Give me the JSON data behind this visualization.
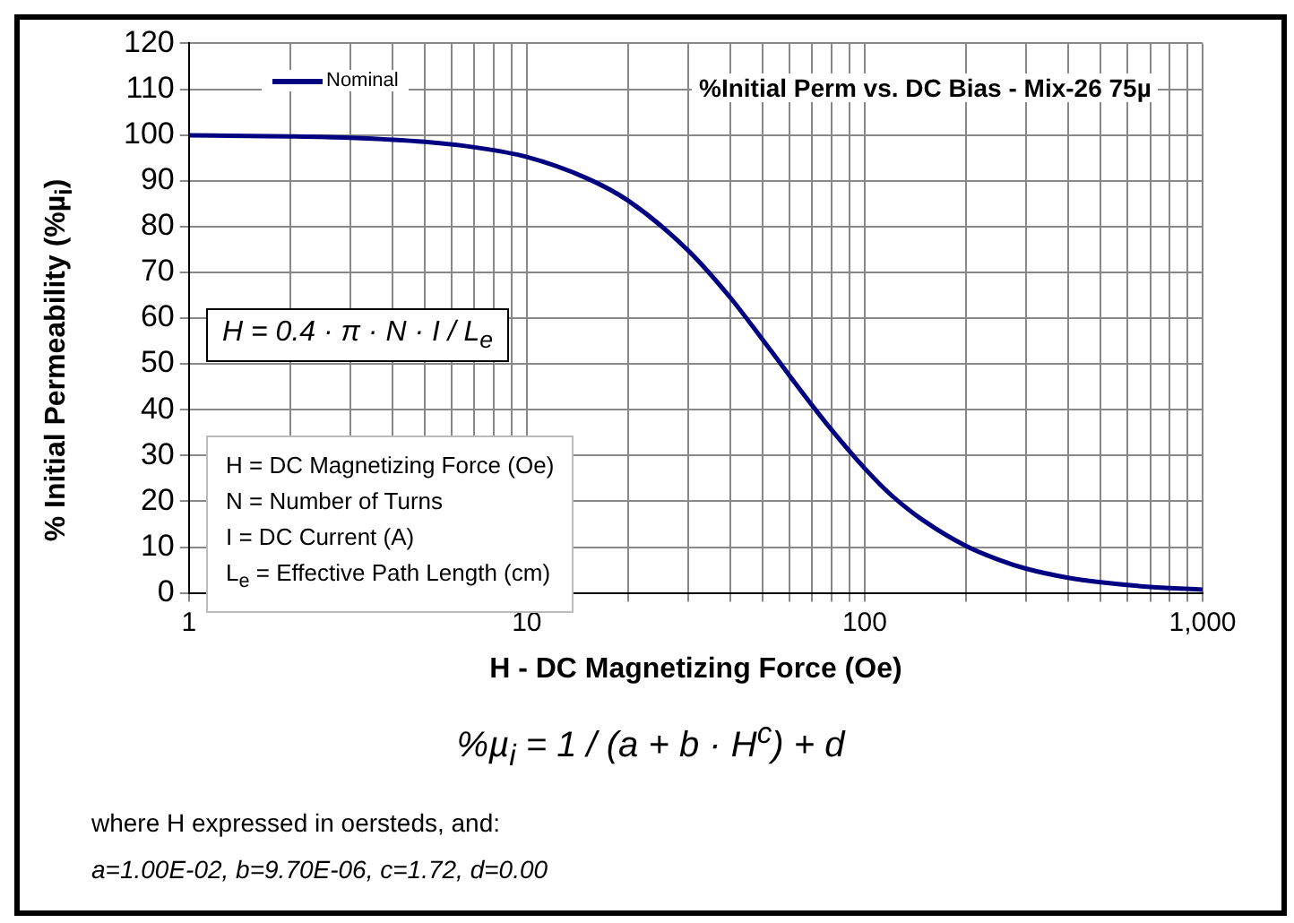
{
  "chart_data": {
    "type": "line",
    "title": "%Initial Perm vs. DC Bias - Mix-26  75µ",
    "xlabel": "H - DC Magnetizing Force (Oe)",
    "ylabel": "% Initial Permeability (%µ$_{i}$)",
    "x": [
      1,
      2,
      3,
      5,
      7,
      10,
      15,
      20,
      30,
      40,
      50,
      60,
      70,
      80,
      100,
      120,
      150,
      200,
      250,
      300,
      400,
      500,
      700,
      1000
    ],
    "series": [
      {
        "name": "Nominal",
        "color": "#000080",
        "values": [
          99.9,
          99.7,
          99.4,
          98.5,
          97.3,
          95.2,
          90.6,
          85.6,
          74.8,
          64.5,
          55.2,
          47.4,
          40.9,
          35.5,
          27.2,
          21.3,
          15.7,
          10.2,
          7.2,
          5.3,
          3.3,
          2.3,
          1.3,
          0.7
        ]
      }
    ],
    "log": "x",
    "xlim": [
      1,
      1000
    ],
    "xticks": [
      1,
      {
        "value": 2,
        "label": null
      },
      {
        "value": 3,
        "label": null
      },
      {
        "value": 4,
        "label": null
      },
      {
        "value": 5,
        "label": null
      },
      {
        "value": 6,
        "label": null
      },
      {
        "value": 7,
        "label": null
      },
      {
        "value": 8,
        "label": null
      },
      {
        "value": 9,
        "label": null
      },
      10,
      {
        "value": 20,
        "label": null
      },
      {
        "value": 30,
        "label": null
      },
      {
        "value": 40,
        "label": null
      },
      {
        "value": 50,
        "label": null
      },
      {
        "value": 60,
        "label": null
      },
      {
        "value": 70,
        "label": null
      },
      {
        "value": 80,
        "label": null
      },
      {
        "value": 90,
        "label": null
      },
      100,
      {
        "value": 200,
        "label": null
      },
      {
        "value": 300,
        "label": null
      },
      {
        "value": 400,
        "label": null
      },
      {
        "value": 500,
        "label": null
      },
      {
        "value": 600,
        "label": null
      },
      {
        "value": 700,
        "label": null
      },
      {
        "value": 800,
        "label": null
      },
      {
        "value": 900,
        "label": null
      },
      {
        "value": 1000,
        "label": "1,000"
      }
    ],
    "ylim": [
      0,
      120
    ],
    "yticks": [
      0,
      10,
      20,
      30,
      40,
      50,
      60,
      70,
      80,
      90,
      100,
      110,
      120
    ],
    "grid": true,
    "legend": "top left",
    "marker": "none",
    "line_style": "solid",
    "annotations": [
      "H = 0.4 · π · N · I / L$_{e}$",
      "H = DC Magnetizing Force (Oe)",
      "N = Number of Turns",
      "I = DC Current (A)",
      "L$_{e}$ = Effective Path Length (cm)",
      "%µ$_{i}$ = 1 / (a + b · H$^{c}$) + d",
      "where H expressed in oersteds, and:",
      "a=1.00E-02, b=9.70E-06, c=1.72, d=0.00"
    ]
  }
}
